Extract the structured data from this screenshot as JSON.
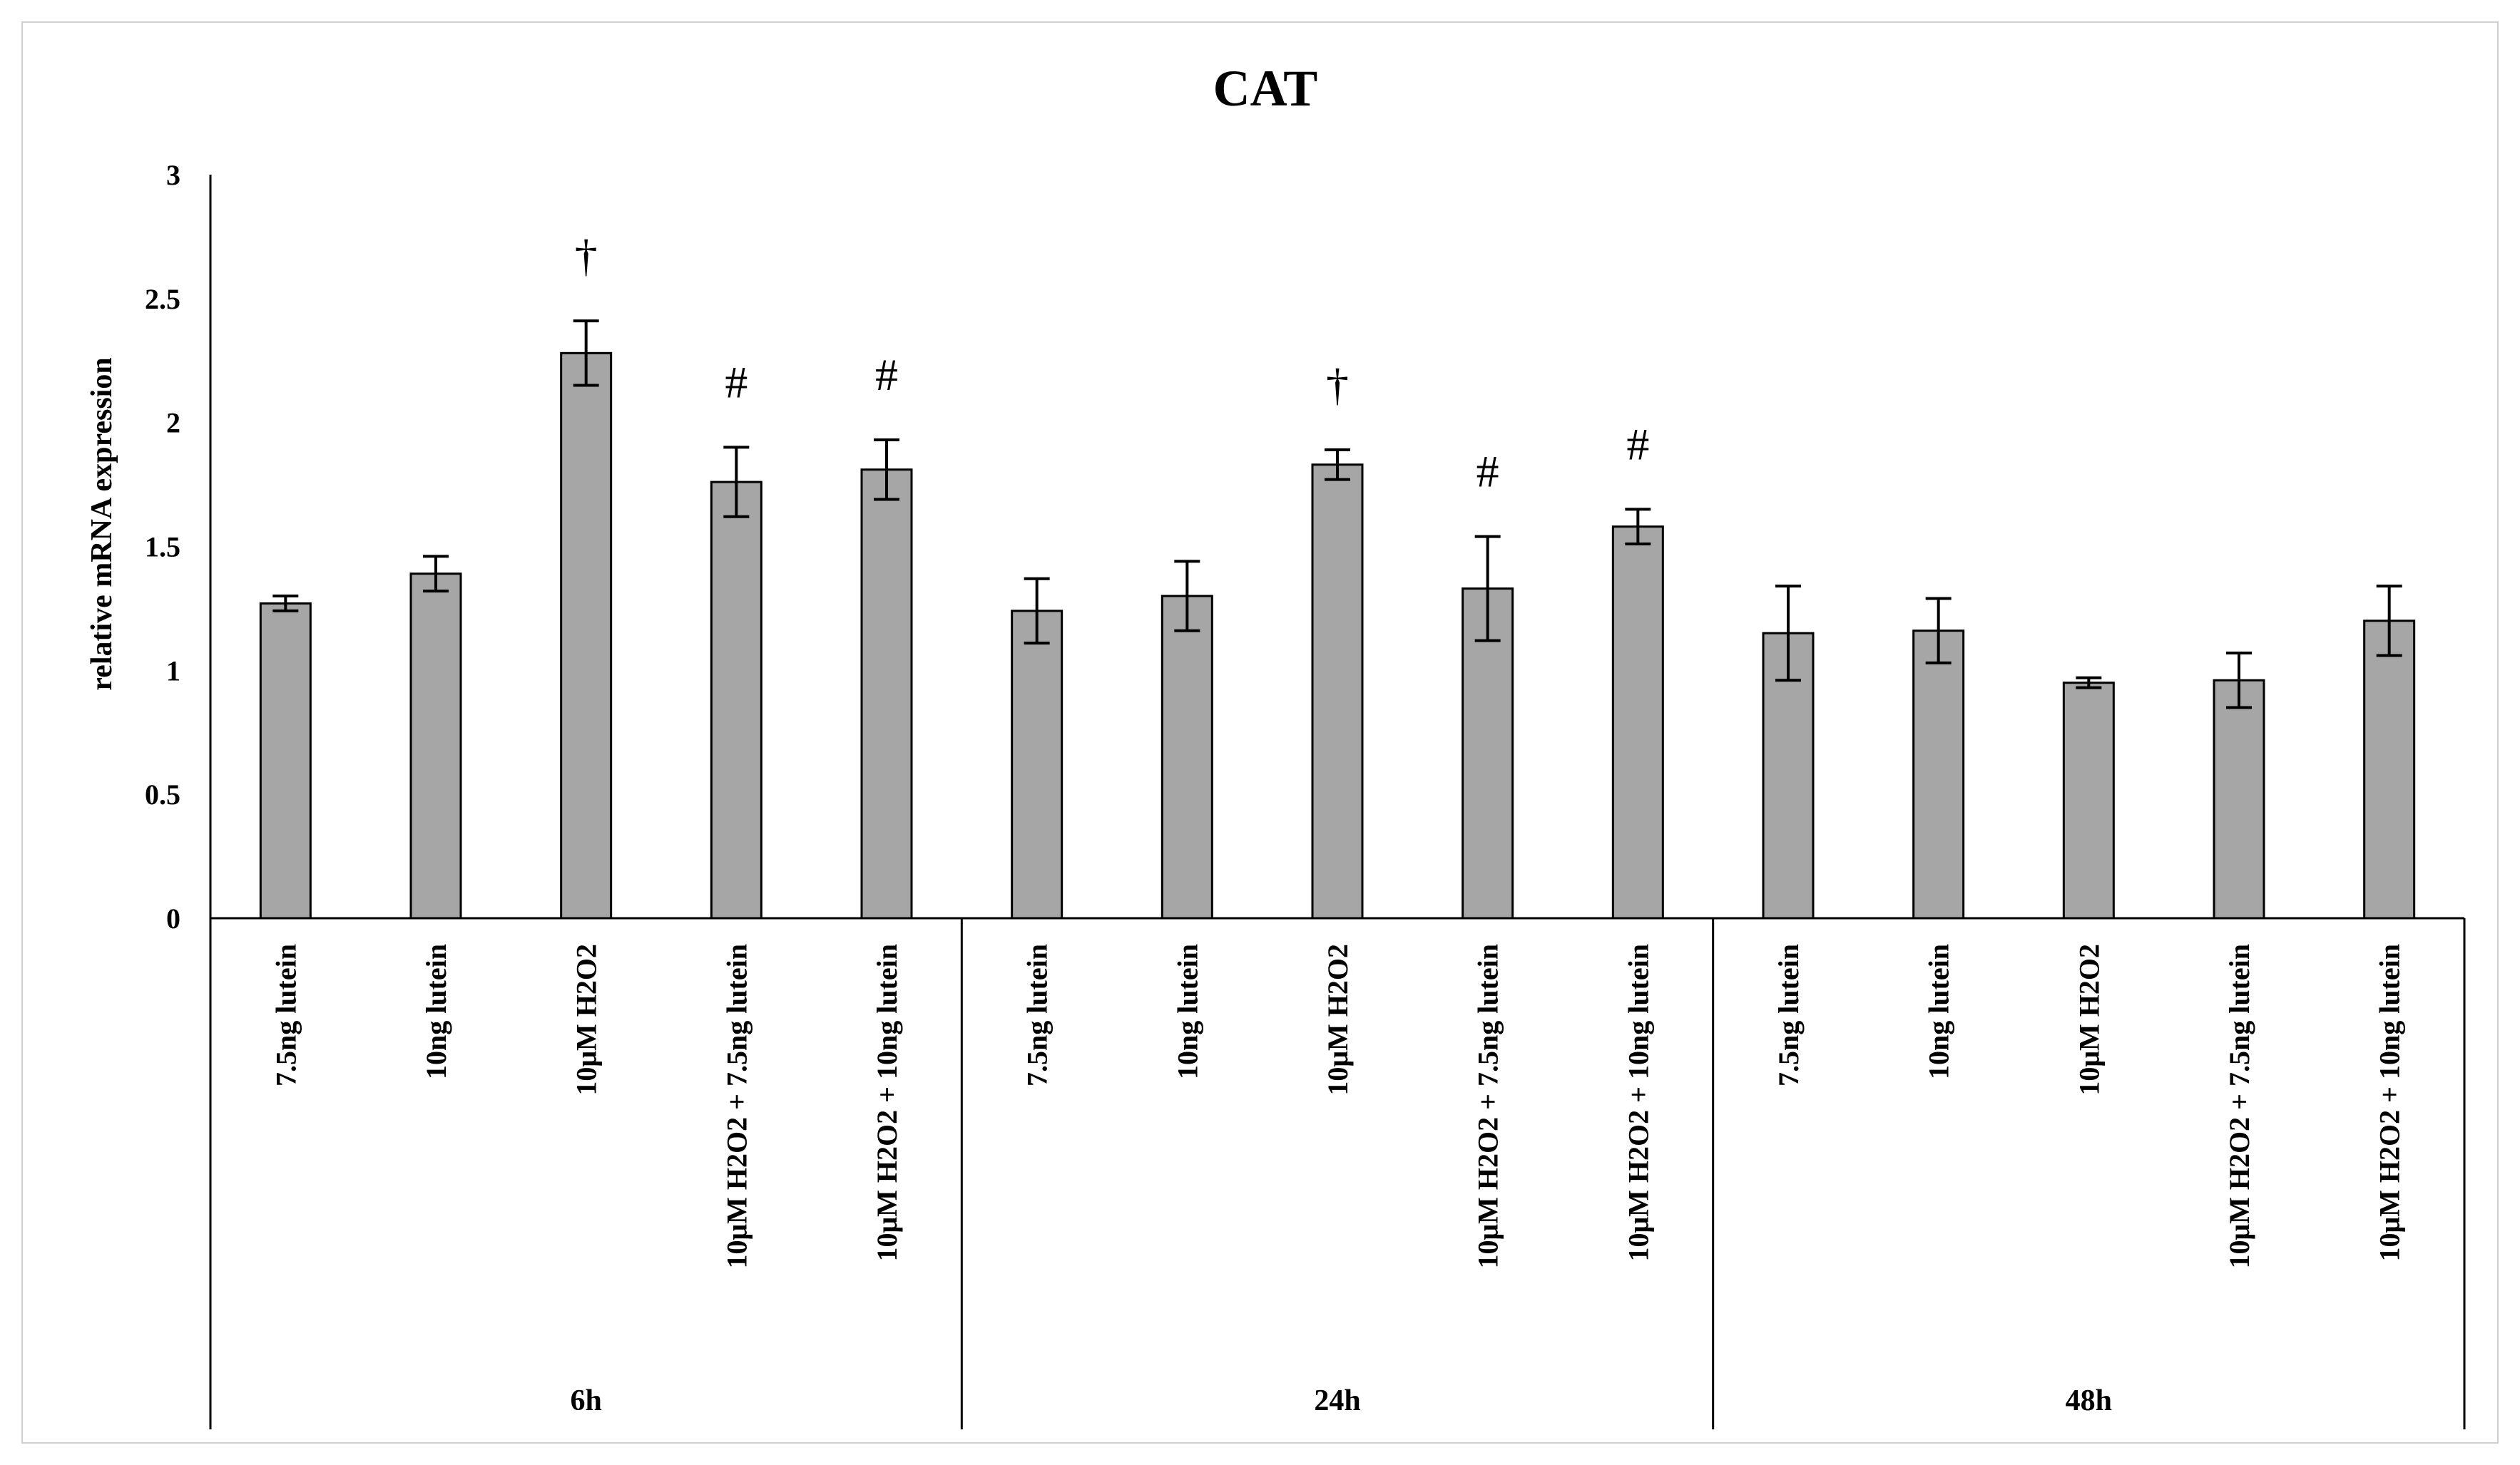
{
  "chart_data": {
    "type": "bar",
    "title": "CAT",
    "xlabel": "",
    "ylabel": "relative mRNA expression",
    "ylim": [
      0,
      3
    ],
    "yticks": [
      0,
      0.5,
      1,
      1.5,
      2,
      2.5,
      3
    ],
    "ytick_labels": [
      "0",
      "0.5",
      "1",
      "1.5",
      "2",
      "2.5",
      "3"
    ],
    "grid": false,
    "legend": "none",
    "bar_color": "#a6a6a6",
    "groups": [
      {
        "label": "6h",
        "bars": [
          {
            "category": "7.5ng lutein",
            "value": 1.27,
            "error": 0.03,
            "annotation": ""
          },
          {
            "category": "10ng lutein",
            "value": 1.39,
            "error": 0.07,
            "annotation": ""
          },
          {
            "category": "10μM H2O2",
            "value": 2.28,
            "error": 0.13,
            "annotation": "†"
          },
          {
            "category": "10μM H2O2 + 7.5ng lutein",
            "value": 1.76,
            "error": 0.14,
            "annotation": "#"
          },
          {
            "category": "10μM H2O2 + 10ng lutein",
            "value": 1.81,
            "error": 0.12,
            "annotation": "#"
          }
        ]
      },
      {
        "label": "24h",
        "bars": [
          {
            "category": "7.5ng lutein",
            "value": 1.24,
            "error": 0.13,
            "annotation": ""
          },
          {
            "category": "10ng lutein",
            "value": 1.3,
            "error": 0.14,
            "annotation": ""
          },
          {
            "category": "10μM H2O2",
            "value": 1.83,
            "error": 0.06,
            "annotation": "†"
          },
          {
            "category": "10μM H2O2 + 7.5ng lutein",
            "value": 1.33,
            "error": 0.21,
            "annotation": "#"
          },
          {
            "category": "10μM H2O2 + 10ng lutein",
            "value": 1.58,
            "error": 0.07,
            "annotation": "#"
          }
        ]
      },
      {
        "label": "48h",
        "bars": [
          {
            "category": "7.5ng lutein",
            "value": 1.15,
            "error": 0.19,
            "annotation": ""
          },
          {
            "category": "10ng lutein",
            "value": 1.16,
            "error": 0.13,
            "annotation": ""
          },
          {
            "category": "10μM H2O2",
            "value": 0.95,
            "error": 0.02,
            "annotation": ""
          },
          {
            "category": "10μM H2O2 + 7.5ng lutein",
            "value": 0.96,
            "error": 0.11,
            "annotation": ""
          },
          {
            "category": "10μM H2O2 + 10ng lutein",
            "value": 1.2,
            "error": 0.14,
            "annotation": ""
          }
        ]
      }
    ]
  }
}
